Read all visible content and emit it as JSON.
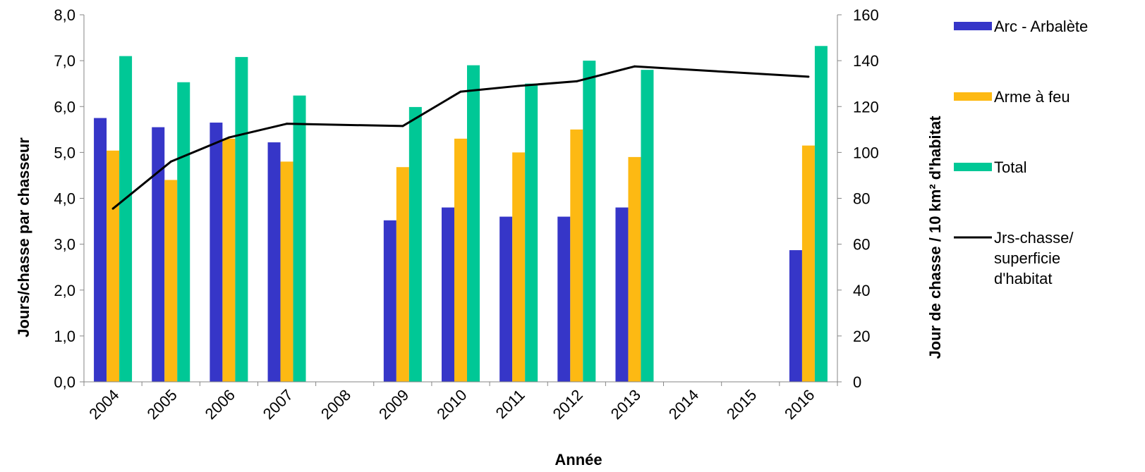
{
  "chart_data": {
    "type": "bar",
    "xlabel": "Année",
    "ylabel": "Jours/chasse par chasseur",
    "y2label": "Jour de chasse / 10  km² d'habitat",
    "categories": [
      "2004",
      "2005",
      "2006",
      "2007",
      "2008",
      "2009",
      "2010",
      "2011",
      "2012",
      "2013",
      "2014",
      "2015",
      "2016"
    ],
    "ylim": [
      0,
      8
    ],
    "y2lim": [
      0,
      160
    ],
    "yticks": [
      "0,0",
      "1,0",
      "2,0",
      "3,0",
      "4,0",
      "5,0",
      "6,0",
      "7,0",
      "8,0"
    ],
    "y2ticks": [
      "0",
      "20",
      "40",
      "60",
      "80",
      "100",
      "120",
      "140",
      "160"
    ],
    "grid": false,
    "legend_position": "right",
    "series": [
      {
        "name": "Arc - Arbalète",
        "type": "bar",
        "axis": "left",
        "color": "#3636c8",
        "values": [
          5.75,
          5.55,
          5.65,
          5.22,
          null,
          3.52,
          3.8,
          3.6,
          3.6,
          3.8,
          null,
          null,
          2.87
        ]
      },
      {
        "name": "Arme à feu",
        "type": "bar",
        "axis": "left",
        "color": "#fdb913",
        "values": [
          5.04,
          4.4,
          5.3,
          4.8,
          null,
          4.68,
          5.3,
          5.0,
          5.5,
          4.9,
          null,
          null,
          5.15
        ]
      },
      {
        "name": "Total",
        "type": "bar",
        "axis": "left",
        "color": "#00c896",
        "values": [
          7.1,
          6.53,
          7.08,
          6.24,
          null,
          5.99,
          6.9,
          6.5,
          7.0,
          6.8,
          null,
          null,
          7.32
        ]
      },
      {
        "name": [
          "Jrs-chasse/",
          "superficie",
          "d'habitat"
        ],
        "type": "line",
        "axis": "right",
        "color": "#000000",
        "values": [
          75.5,
          96,
          106.5,
          112.5,
          null,
          111.5,
          126.5,
          129,
          131,
          137.5,
          null,
          null,
          133
        ]
      }
    ]
  }
}
